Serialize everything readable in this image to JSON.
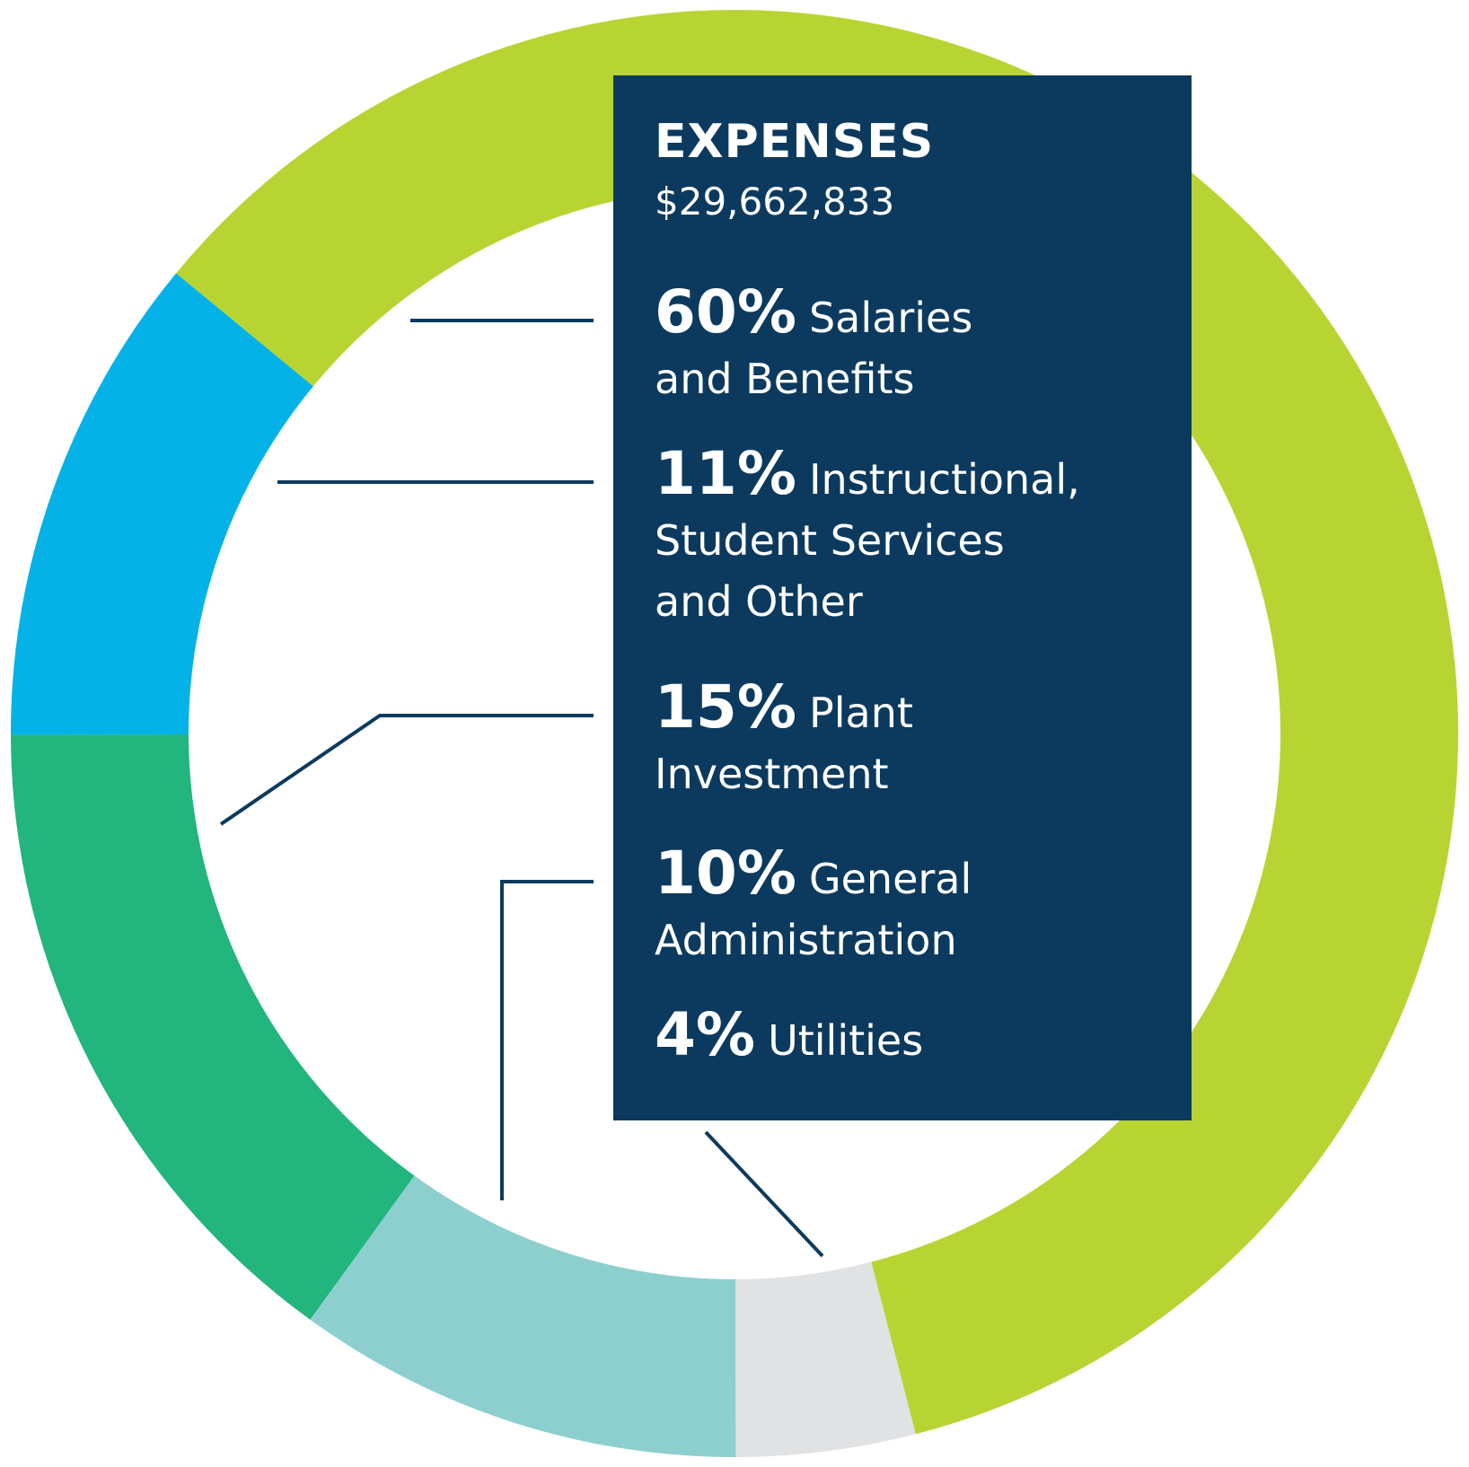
{
  "chart_data": {
    "type": "pie",
    "title": "EXPENSES",
    "subtitle": "$29,662,833",
    "slices": [
      {
        "percent": 60,
        "label": "Salaries and Benefits",
        "color": "#b8d433"
      },
      {
        "percent": 11,
        "label": "Instructional, Student Services and Other",
        "color": "#05b2e7"
      },
      {
        "percent": 15,
        "label": "Plant Investment",
        "color": "#22b57d"
      },
      {
        "percent": 10,
        "label": "General Administration",
        "color": "#8dcfcf"
      },
      {
        "percent": 4,
        "label": "Utilities",
        "color": "#e0e2e3"
      }
    ],
    "donut": true
  },
  "legend": [
    {
      "pct": "60%",
      "line1": "Salaries",
      "line2": "and Benefits",
      "line3": ""
    },
    {
      "pct": "11%",
      "line1": "Instructional,",
      "line2": "Student Services",
      "line3": "and Other"
    },
    {
      "pct": "15%",
      "line1": "Plant",
      "line2": "Investment",
      "line3": ""
    },
    {
      "pct": "10%",
      "line1": "General",
      "line2": "Administration",
      "line3": ""
    },
    {
      "pct": "4%",
      "line1": "Utilities",
      "line2": "",
      "line3": ""
    }
  ],
  "colors": {
    "panel": "#0c3a5f",
    "text": "#ffffff"
  }
}
